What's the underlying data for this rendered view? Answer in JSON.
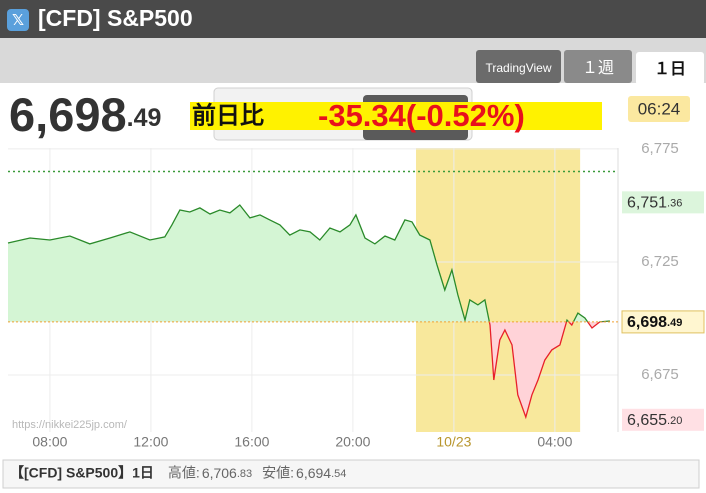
{
  "header": {
    "icon": "𝕏",
    "title": "[CFD] S&P500"
  },
  "tabs": [
    "TradingView",
    "１週",
    "１日"
  ],
  "quote": {
    "price": "6,698.49",
    "change_label": "前日比",
    "change": "-35.34(-0.52%)",
    "time": "06:24"
  },
  "chart_data": {
    "type": "line",
    "watermark": "https://nikkei225jp.com/",
    "x": [
      6.34,
      7.21,
      8.0,
      8.79,
      9.58,
      10.38,
      11.17,
      11.96,
      12.55,
      12.83,
      13.15,
      13.54,
      13.94,
      14.34,
      14.73,
      15.13,
      15.52,
      15.92,
      16.32,
      16.71,
      17.11,
      17.5,
      17.9,
      18.3,
      18.69,
      19.09,
      19.49,
      19.88,
      20.12,
      20.48,
      20.87,
      21.27,
      21.66,
      22.06,
      22.34,
      22.65,
      23.05,
      23.33,
      23.64,
      23.92,
      24.16,
      24.44,
      24.63,
      24.95,
      25.23,
      25.43,
      25.58,
      25.82,
      26.02,
      26.3,
      26.53,
      26.85,
      27.09,
      27.33,
      27.6,
      27.88,
      28.2,
      28.48,
      28.67,
      28.91,
      29.19,
      29.47,
      29.78,
      30.18
    ],
    "values": [
      6733.4,
      6735.6,
      6734.7,
      6736.5,
      6733.0,
      6735.6,
      6738.3,
      6734.7,
      6736.1,
      6741.4,
      6748.0,
      6747.1,
      6748.9,
      6746.2,
      6748.0,
      6746.7,
      6750.2,
      6744.5,
      6745.8,
      6743.6,
      6741.4,
      6736.9,
      6739.2,
      6738.3,
      6734.7,
      6740.0,
      6738.3,
      6741.4,
      6745.8,
      6735.6,
      6733.0,
      6736.5,
      6734.7,
      6743.6,
      6742.7,
      6736.9,
      6734.7,
      6723.7,
      6712.6,
      6721.5,
      6710.4,
      6699.3,
      6708.2,
      6706.0,
      6708.2,
      6697.1,
      6672.8,
      6690.5,
      6694.9,
      6688.3,
      6666.2,
      6656.4,
      6666.2,
      6672.8,
      6681.6,
      6686.1,
      6688.3,
      6699.3,
      6697.1,
      6702.4,
      6700.2,
      6695.8,
      6698.5,
      6698.9
    ],
    "color": "#2a8a2a",
    "fill_color": "#d4f5d4",
    "down_color": "#e8202a",
    "down_fill_color": "#ffd3d8",
    "fill_base": 6698.49,
    "xlim": [
      6.34,
      30.5
    ],
    "ylim": [
      6649.8,
      6775.4
    ],
    "xticks": [
      {
        "value": 8,
        "label": "08:00"
      },
      {
        "value": 12,
        "label": "12:00"
      },
      {
        "value": 16,
        "label": "16:00"
      },
      {
        "value": 20,
        "label": "20:00"
      },
      {
        "value": 24,
        "label": "10/23"
      },
      {
        "value": 28,
        "label": "04:00"
      }
    ],
    "yticks": [
      {
        "value": 6775,
        "label": "6,775"
      },
      {
        "value": 6725,
        "label": "6,725"
      },
      {
        "value": 6675,
        "label": "6,675"
      }
    ],
    "grid": true,
    "session_band": [
      22.5,
      29.0
    ],
    "session_color": "#f8e89c",
    "ref_line": {
      "value": 6765,
      "color": "#3a9a3a"
    },
    "markers": [
      {
        "value": 6751.36,
        "label": "6,751.36",
        "bg": "#dcf5dc",
        "color": "#333333"
      },
      {
        "value": 6698.49,
        "label": "6,698.49",
        "bg": "#fff6d0",
        "color": "#111111",
        "line_color": "#f0a030"
      },
      {
        "value": 6655.2,
        "label": "6,655.20",
        "bg": "#ffe0e4",
        "color": "#333333"
      }
    ]
  },
  "footer": {
    "title": "【[CFD] S&P500】1日",
    "high_label": "高値:",
    "high": "6,706.83",
    "low_label": "安値:",
    "low": "6,694.54"
  }
}
